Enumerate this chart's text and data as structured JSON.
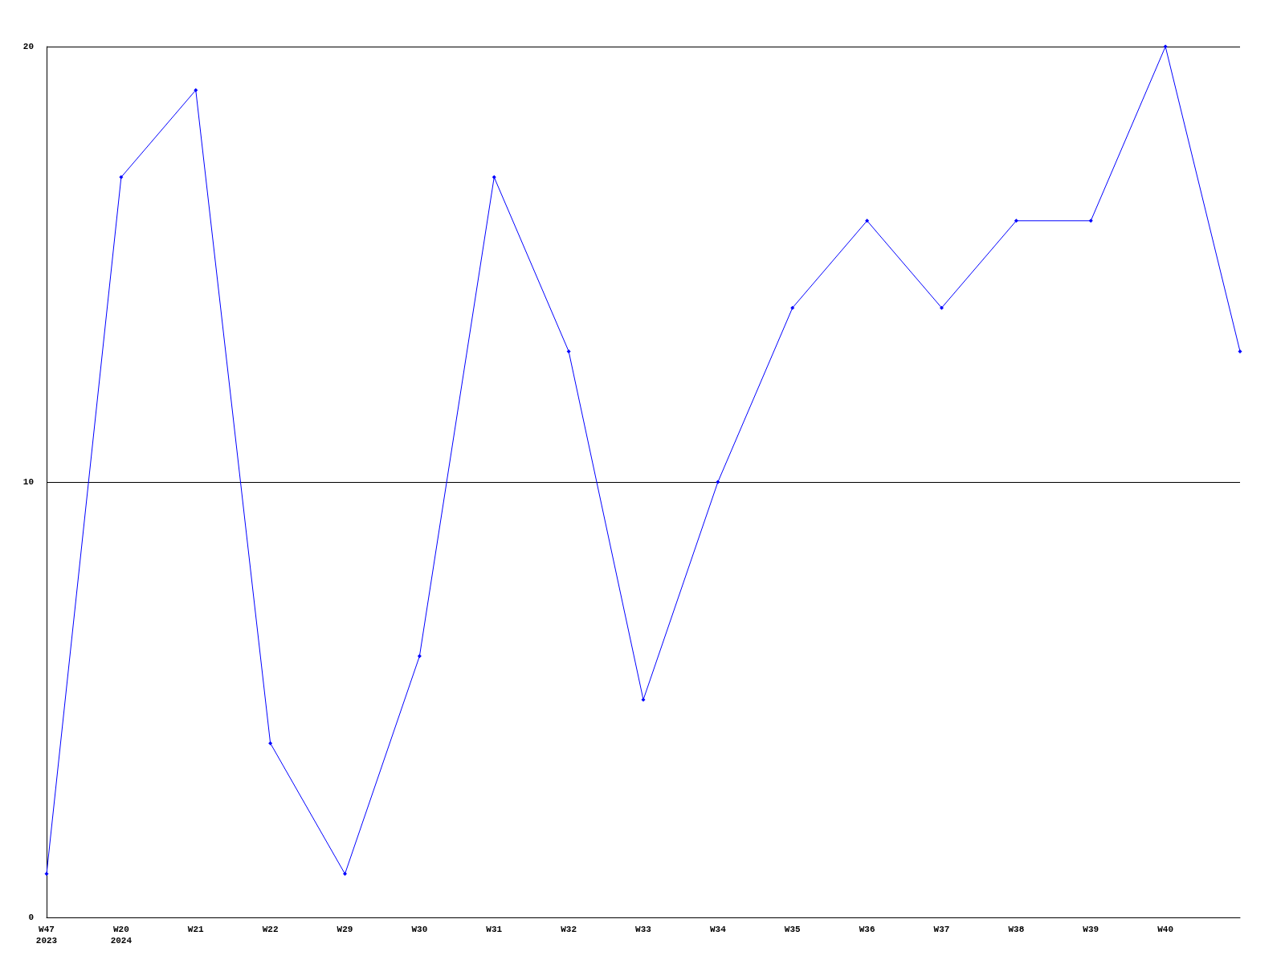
{
  "chart_data": {
    "type": "line",
    "categories": [
      "W47\n2023",
      "W20\n2024",
      "W21",
      "W22",
      "W29",
      "W30",
      "W31",
      "W32",
      "W33",
      "W34",
      "W35",
      "W36",
      "W37",
      "W38",
      "W39",
      "W40",
      null
    ],
    "series": [
      {
        "color": "#0000ff",
        "values": [
          1,
          17,
          19,
          4,
          1,
          6,
          17,
          13,
          5,
          10,
          14,
          16,
          14,
          16,
          16,
          20,
          13
        ]
      }
    ],
    "ylim": [
      0,
      20
    ],
    "yticks": [
      0,
      10,
      20
    ],
    "grid": "y",
    "marker": "diamond",
    "line_style": "solid"
  }
}
